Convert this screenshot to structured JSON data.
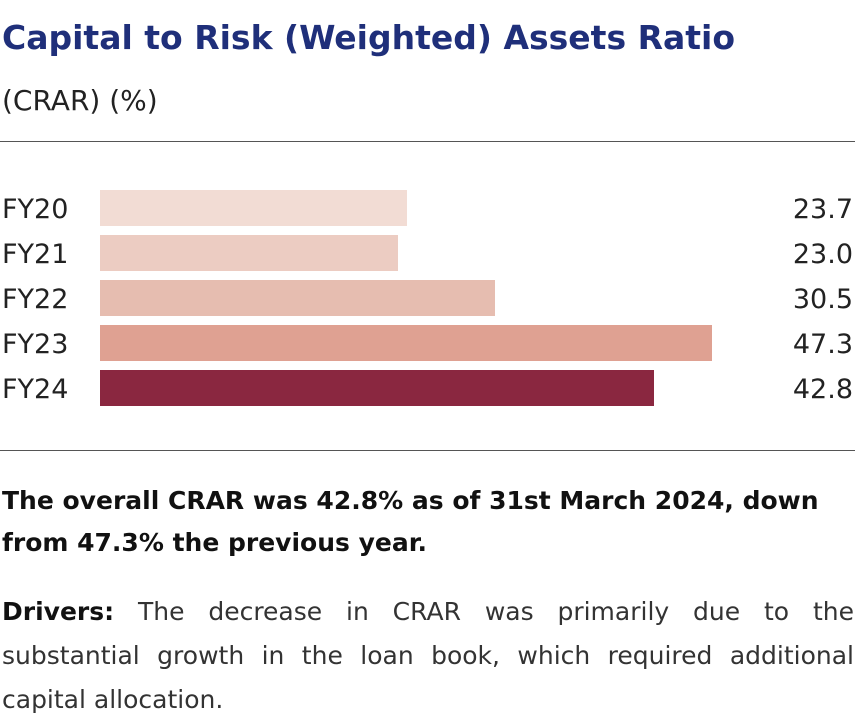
{
  "header": {
    "title": "Capital to Risk (Weighted) Assets Ratio",
    "subtitle": "(CRAR) (%)"
  },
  "chart_data": {
    "type": "bar",
    "orientation": "horizontal",
    "categories": [
      "FY20",
      "FY21",
      "FY22",
      "FY23",
      "FY24"
    ],
    "values": [
      23.7,
      23.0,
      30.5,
      47.3,
      42.8
    ],
    "value_labels": [
      "23.7",
      "23.0",
      "30.5",
      "47.3",
      "42.8"
    ],
    "bar_colors": [
      "#f2dcd4",
      "#ecccc2",
      "#e6bdb0",
      "#dfa192",
      "#8a2740"
    ],
    "xlim": [
      0,
      50
    ],
    "title": "",
    "xlabel": "",
    "ylabel": "",
    "grid": false,
    "legend": "none"
  },
  "summary": {
    "text": "The overall CRAR was 42.8% as of 31st March 2024, down from 47.3% the previous year."
  },
  "drivers": {
    "label": "Drivers:",
    "text": " The decrease in CRAR was primarily due to the substantial growth in the loan book, which required additional capital allocation."
  },
  "colors": {
    "title": "#1f2f7a",
    "accent": "#8a2740"
  }
}
